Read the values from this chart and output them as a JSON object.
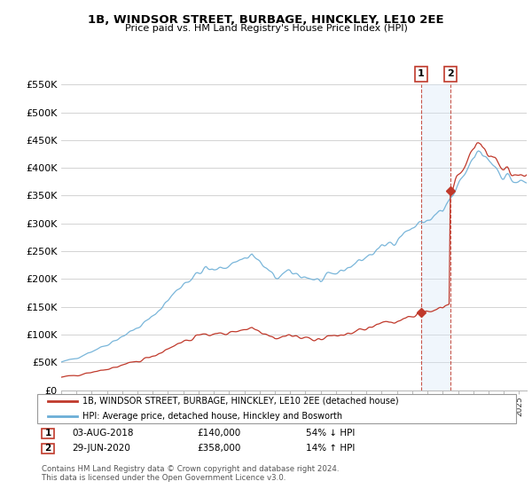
{
  "title": "1B, WINDSOR STREET, BURBAGE, HINCKLEY, LE10 2EE",
  "subtitle": "Price paid vs. HM Land Registry's House Price Index (HPI)",
  "ylim": [
    0,
    550000
  ],
  "yticks": [
    0,
    50000,
    100000,
    150000,
    200000,
    250000,
    300000,
    350000,
    400000,
    450000,
    500000,
    550000
  ],
  "hpi_color": "#6baed6",
  "price_color": "#c0392b",
  "marker1_price": 140000,
  "marker1_date_str": "03-AUG-2018",
  "marker1_pct": "54% ↓ HPI",
  "marker2_price": 358000,
  "marker2_date_str": "29-JUN-2020",
  "marker2_pct": "14% ↑ HPI",
  "legend_line1": "1B, WINDSOR STREET, BURBAGE, HINCKLEY, LE10 2EE (detached house)",
  "legend_line2": "HPI: Average price, detached house, Hinckley and Bosworth",
  "footnote": "Contains HM Land Registry data © Crown copyright and database right 2024.\nThis data is licensed under the Open Government Licence v3.0.",
  "bg_color": "#ffffff",
  "grid_color": "#cccccc",
  "shade_color": "#d6e8f7",
  "xmin": 1995.0,
  "xmax": 2025.5,
  "sale1_x": 2018.58,
  "sale2_x": 2020.5
}
